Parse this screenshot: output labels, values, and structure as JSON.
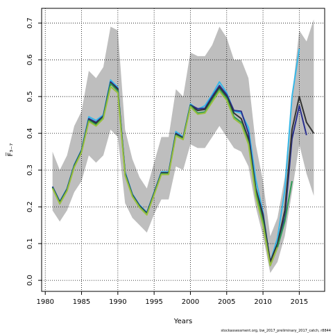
{
  "chart_data": {
    "type": "line",
    "xlabel": "Years",
    "ylabel": "F̅₃₋₇",
    "xlim": [
      1979.5,
      2018.5
    ],
    "ylim": [
      -0.03,
      0.74
    ],
    "xticks": [
      1980,
      1985,
      1990,
      1995,
      2000,
      2005,
      2010,
      2015
    ],
    "yticks": [
      0.0,
      0.1,
      0.2,
      0.3,
      0.4,
      0.5,
      0.6,
      0.7
    ],
    "ytick_labels": [
      "0.0",
      "0.1",
      "0.2",
      "0.3",
      "0.4",
      "0.5",
      "0.6",
      "0.7"
    ],
    "grid": true,
    "footer": "stockassessment.org, bw_2017_preliminary_2017_catch, r8844",
    "band": {
      "color": "#bebebe",
      "x": [
        1981,
        1982,
        1983,
        1984,
        1985,
        1986,
        1987,
        1988,
        1989,
        1990,
        1991,
        1992,
        1993,
        1994,
        1995,
        1996,
        1997,
        1998,
        1999,
        2000,
        2001,
        2002,
        2003,
        2004,
        2005,
        2006,
        2007,
        2008,
        2009,
        2010,
        2011,
        2012,
        2013,
        2014,
        2015,
        2016,
        2017
      ],
      "upper": [
        0.35,
        0.3,
        0.34,
        0.42,
        0.46,
        0.57,
        0.55,
        0.58,
        0.69,
        0.68,
        0.41,
        0.33,
        0.28,
        0.25,
        0.32,
        0.39,
        0.39,
        0.52,
        0.5,
        0.62,
        0.61,
        0.61,
        0.64,
        0.69,
        0.66,
        0.6,
        0.6,
        0.55,
        0.37,
        0.27,
        0.12,
        0.17,
        0.28,
        0.5,
        0.68,
        0.65,
        0.71
      ],
      "lower": [
        0.19,
        0.16,
        0.19,
        0.24,
        0.27,
        0.34,
        0.32,
        0.34,
        0.41,
        0.39,
        0.21,
        0.17,
        0.15,
        0.13,
        0.18,
        0.22,
        0.22,
        0.31,
        0.3,
        0.37,
        0.36,
        0.36,
        0.39,
        0.42,
        0.39,
        0.36,
        0.35,
        0.31,
        0.2,
        0.12,
        0.02,
        0.05,
        0.12,
        0.24,
        0.37,
        0.29,
        0.23
      ]
    },
    "series": [
      {
        "color": "#36b8e8",
        "x": [
          1981,
          1982,
          1983,
          1984,
          1985,
          1986,
          1987,
          1988,
          1989,
          1990,
          1991,
          1992,
          1993,
          1994,
          1995,
          1996,
          1997,
          1998,
          1999,
          2000,
          2001,
          2002,
          2003,
          2004,
          2005,
          2006,
          2007,
          2008,
          2009,
          2010,
          2011,
          2012,
          2013,
          2014,
          2015
        ],
        "y": [
          0.255,
          0.215,
          0.25,
          0.315,
          0.355,
          0.445,
          0.435,
          0.45,
          0.545,
          0.525,
          0.295,
          0.235,
          0.205,
          0.185,
          0.24,
          0.295,
          0.295,
          0.405,
          0.39,
          0.48,
          0.465,
          0.475,
          0.505,
          0.54,
          0.51,
          0.46,
          0.455,
          0.415,
          0.275,
          0.185,
          0.05,
          0.115,
          0.245,
          0.5,
          0.63
        ]
      },
      {
        "color": "#2a2f8f",
        "x": [
          1981,
          1982,
          1983,
          1984,
          1985,
          1986,
          1987,
          1988,
          1989,
          1990,
          1991,
          1992,
          1993,
          1994,
          1995,
          1996,
          1997,
          1998,
          1999,
          2000,
          2001,
          2002,
          2003,
          2004,
          2005,
          2006,
          2007,
          2008,
          2009,
          2010,
          2011,
          2012,
          2013,
          2014,
          2015,
          2016
        ],
        "y": [
          0.255,
          0.213,
          0.248,
          0.313,
          0.353,
          0.44,
          0.43,
          0.447,
          0.54,
          0.522,
          0.292,
          0.233,
          0.203,
          0.183,
          0.238,
          0.293,
          0.293,
          0.4,
          0.388,
          0.477,
          0.467,
          0.468,
          0.5,
          0.53,
          0.505,
          0.462,
          0.46,
          0.4,
          0.25,
          0.18,
          0.05,
          0.1,
          0.17,
          0.385,
          0.475,
          0.395
        ]
      },
      {
        "color": "#333333",
        "x": [
          1981,
          1982,
          1983,
          1984,
          1985,
          1986,
          1987,
          1988,
          1989,
          1990,
          1991,
          1992,
          1993,
          1994,
          1995,
          1996,
          1997,
          1998,
          1999,
          2000,
          2001,
          2002,
          2003,
          2004,
          2005,
          2006,
          2007,
          2008,
          2009,
          2010,
          2011,
          2012,
          2013,
          2014,
          2015,
          2016,
          2017
        ],
        "y": [
          0.253,
          0.212,
          0.247,
          0.312,
          0.352,
          0.437,
          0.427,
          0.445,
          0.537,
          0.52,
          0.29,
          0.232,
          0.202,
          0.182,
          0.237,
          0.292,
          0.292,
          0.398,
          0.387,
          0.476,
          0.462,
          0.465,
          0.495,
          0.525,
          0.5,
          0.455,
          0.44,
          0.385,
          0.25,
          0.175,
          0.05,
          0.1,
          0.19,
          0.41,
          0.5,
          0.43,
          0.4
        ]
      },
      {
        "color": "#2e9c55",
        "x": [
          1981,
          1982,
          1983,
          1984,
          1985,
          1986,
          1987,
          1988,
          1989,
          1990,
          1991,
          1992,
          1993,
          1994,
          1995,
          1996,
          1997,
          1998,
          1999,
          2000,
          2001,
          2002,
          2003,
          2004,
          2005,
          2006,
          2007,
          2008,
          2009,
          2010,
          2011,
          2012,
          2013,
          2014
        ],
        "y": [
          0.252,
          0.21,
          0.245,
          0.31,
          0.35,
          0.435,
          0.423,
          0.443,
          0.535,
          0.515,
          0.288,
          0.23,
          0.2,
          0.18,
          0.235,
          0.29,
          0.29,
          0.395,
          0.385,
          0.475,
          0.455,
          0.458,
          0.49,
          0.52,
          0.495,
          0.445,
          0.43,
          0.375,
          0.24,
          0.16,
          0.04,
          0.09,
          0.16,
          0.27
        ]
      },
      {
        "color": "#9bbf3f",
        "x": [
          1981,
          1982,
          1983,
          1984,
          1985,
          1986,
          1987,
          1988,
          1989,
          1990,
          1991,
          1992,
          1993,
          1994,
          1995,
          1996,
          1997,
          1998,
          1999,
          2000,
          2001,
          2002,
          2003,
          2004,
          2005,
          2006,
          2007,
          2008,
          2009,
          2010,
          2011,
          2012
        ],
        "y": [
          0.25,
          0.208,
          0.243,
          0.308,
          0.348,
          0.432,
          0.42,
          0.44,
          0.527,
          0.51,
          0.285,
          0.228,
          0.198,
          0.178,
          0.233,
          0.288,
          0.288,
          0.393,
          0.383,
          0.472,
          0.452,
          0.455,
          0.485,
          0.515,
          0.49,
          0.44,
          0.425,
          0.37,
          0.23,
          0.15,
          0.04,
          0.09
        ]
      }
    ]
  }
}
